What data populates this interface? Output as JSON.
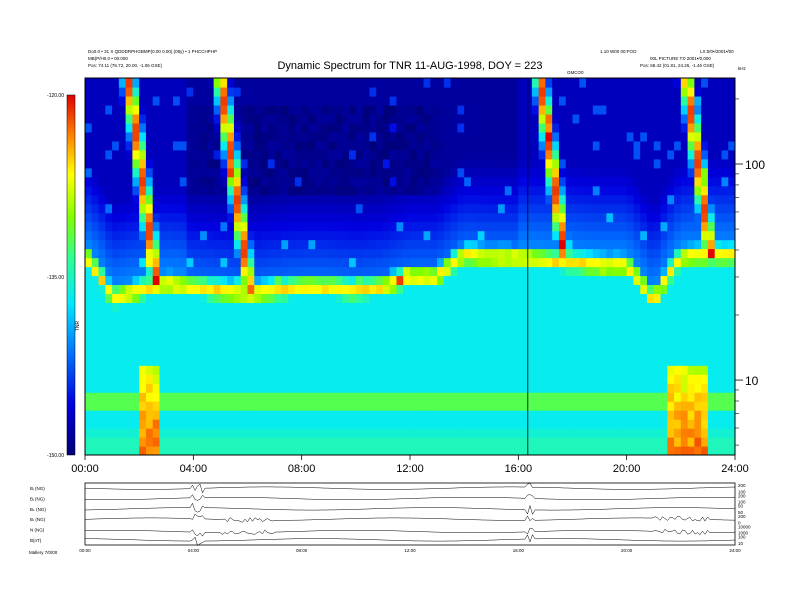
{
  "chart_data": {
    "type": "heatmap",
    "title": "Dynamic Spectrum for TNR 11-AUG-1998, DOY = 223",
    "header_left": [
      "Do0.0 • 31 X QDDDRPHGBMP(0.00 0.00) (0tty) • 1 PHCCHPHP",
      "MB(P/H0.0 • 00.000",
      "Pos:   74.11 (76.72, 20.00, -1.06 GSE)"
    ],
    "header_right": [
      "1.10 W00 00:FOO",
      "LX:0/0•/2001•/00",
      "00L PICTURE  T:0 2001•/0,000",
      "Pos:   68.42 (01.81, 24.26, -1.46 GSE)"
    ],
    "top_axis_label": "GMCO0",
    "x_axis": {
      "ticks": [
        "00:00",
        "04:00",
        "08:00",
        "12:00",
        "16:00",
        "20:00",
        "24:00"
      ],
      "range_hours": [
        0,
        24
      ]
    },
    "y_axis_right": {
      "scale": "log",
      "unit": "kHz",
      "ticks": [
        "100",
        "10"
      ],
      "tick_values": [
        100,
        10
      ],
      "range": [
        4.5,
        250
      ]
    },
    "colorbar": {
      "ticks": [
        "-120.00",
        "-135.00",
        "-150.00"
      ],
      "range": [
        -150,
        -120
      ],
      "label": "TNR"
    },
    "event_marker_hours": 16.35,
    "features": {
      "background_band_khz": [
        4.5,
        30
      ],
      "plasma_line_khz": [
        38,
        24,
        26,
        28,
        27,
        26,
        25,
        26,
        27,
        27,
        26,
        27,
        30,
        30,
        38,
        37,
        37,
        36,
        35,
        34,
        34,
        23,
        37,
        38,
        38
      ],
      "strong_bursts_hours": [
        1.6,
        5.0,
        16.8,
        22.2
      ],
      "weak_bands_khz": [
        8.5,
        7.2
      ]
    },
    "bottom_panels": {
      "labels": [
        "Bᵢ (NG)",
        "Bⱼ (NG)",
        "Bₖ (NG)",
        "Bᵣ (NG)",
        "N (NG)",
        "B(nT)"
      ],
      "right_ticks": [
        [
          "200",
          "100"
        ],
        [
          "200",
          "100"
        ],
        [
          "50",
          "50"
        ],
        [
          "200",
          "0"
        ],
        [
          "10000",
          "1000"
        ],
        [
          "100",
          "10"
        ]
      ],
      "x_ticks": [
        "00:00",
        "04:00",
        "08:00",
        "12:00",
        "16:00",
        "20:00",
        "24:00"
      ],
      "footer": "Mallery 7/0/00"
    },
    "grid": false,
    "legend": "none"
  }
}
